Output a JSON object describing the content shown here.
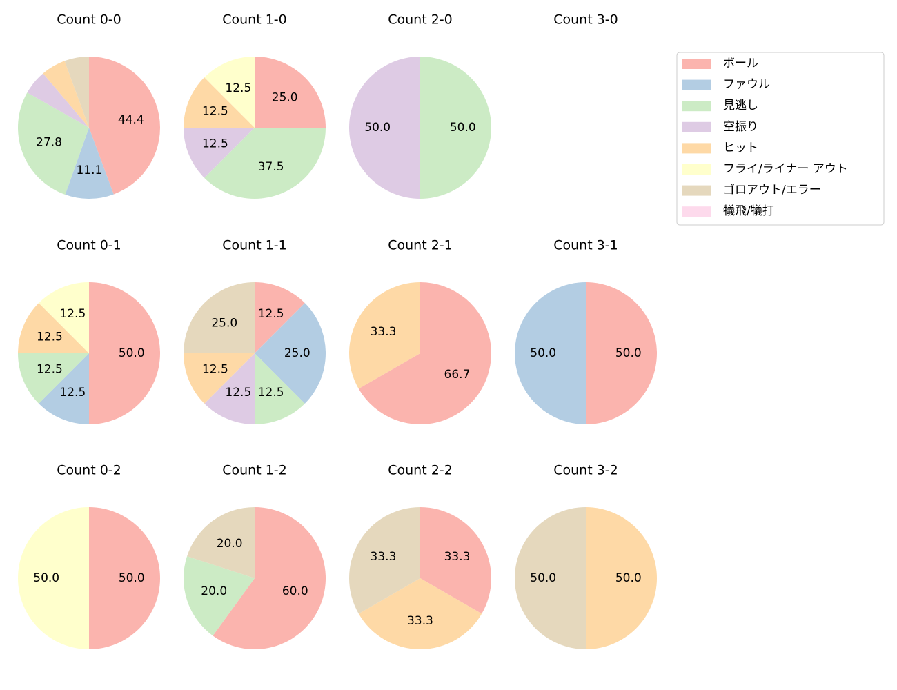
{
  "chart_data": [
    {
      "type": "pie",
      "title": "Count 0-0",
      "values": [
        44.4,
        11.1,
        27.8,
        5.6,
        5.6,
        5.6
      ],
      "value_labels": [
        "44.4",
        "11.1",
        "27.8",
        null,
        null,
        null
      ],
      "colors": [
        "#fbb4ae",
        "#b3cde3",
        "#ccebc5",
        "#decbe4",
        "#fed9a6",
        "#e5d8bd"
      ]
    },
    {
      "type": "pie",
      "title": "Count 1-0",
      "values": [
        25,
        37.5,
        12.5,
        12.5,
        12.5
      ],
      "value_labels": [
        "25.0",
        "37.5",
        "12.5",
        "12.5",
        "12.5"
      ],
      "colors": [
        "#fbb4ae",
        "#ccebc5",
        "#decbe4",
        "#fed9a6",
        "#ffffcc"
      ]
    },
    {
      "type": "pie",
      "title": "Count 2-0",
      "values": [
        50,
        50
      ],
      "value_labels": [
        "50.0",
        "50.0"
      ],
      "colors": [
        "#ccebc5",
        "#decbe4"
      ]
    },
    {
      "type": "pie",
      "title": "Count 3-0",
      "values": [],
      "value_labels": [],
      "colors": []
    },
    {
      "type": "pie",
      "title": "Count 0-1",
      "values": [
        50,
        12.5,
        12.5,
        12.5,
        12.5
      ],
      "value_labels": [
        "50.0",
        "12.5",
        "12.5",
        "12.5",
        "12.5"
      ],
      "colors": [
        "#fbb4ae",
        "#b3cde3",
        "#ccebc5",
        "#fed9a6",
        "#ffffcc"
      ]
    },
    {
      "type": "pie",
      "title": "Count 1-1",
      "values": [
        12.5,
        25,
        12.5,
        12.5,
        12.5,
        25
      ],
      "value_labels": [
        "12.5",
        "25.0",
        "12.5",
        "12.5",
        "12.5",
        "25.0"
      ],
      "colors": [
        "#fbb4ae",
        "#b3cde3",
        "#ccebc5",
        "#decbe4",
        "#fed9a6",
        "#e5d8bd"
      ]
    },
    {
      "type": "pie",
      "title": "Count 2-1",
      "values": [
        66.7,
        33.3
      ],
      "value_labels": [
        "66.7",
        "33.3"
      ],
      "colors": [
        "#fbb4ae",
        "#fed9a6"
      ]
    },
    {
      "type": "pie",
      "title": "Count 3-1",
      "values": [
        50,
        50
      ],
      "value_labels": [
        "50.0",
        "50.0"
      ],
      "colors": [
        "#fbb4ae",
        "#b3cde3"
      ]
    },
    {
      "type": "pie",
      "title": "Count 0-2",
      "values": [
        50,
        50
      ],
      "value_labels": [
        "50.0",
        "50.0"
      ],
      "colors": [
        "#fbb4ae",
        "#ffffcc"
      ]
    },
    {
      "type": "pie",
      "title": "Count 1-2",
      "values": [
        60,
        20,
        20
      ],
      "value_labels": [
        "60.0",
        "20.0",
        "20.0"
      ],
      "colors": [
        "#fbb4ae",
        "#ccebc5",
        "#e5d8bd"
      ]
    },
    {
      "type": "pie",
      "title": "Count 2-2",
      "values": [
        33.3,
        33.3,
        33.3
      ],
      "value_labels": [
        "33.3",
        "33.3",
        "33.3"
      ],
      "colors": [
        "#fbb4ae",
        "#fed9a6",
        "#e5d8bd"
      ]
    },
    {
      "type": "pie",
      "title": "Count 3-2",
      "values": [
        50,
        50
      ],
      "value_labels": [
        "50.0",
        "50.0"
      ],
      "colors": [
        "#fed9a6",
        "#e5d8bd"
      ]
    }
  ],
  "legend": {
    "labels": [
      "ボール",
      "ファウル",
      "見逃し",
      "空振り",
      "ヒット",
      "フライ/ライナー アウト",
      "ゴロアウト/エラー",
      "犠飛/犠打"
    ],
    "colors": [
      "#fbb4ae",
      "#b3cde3",
      "#ccebc5",
      "#decbe4",
      "#fed9a6",
      "#ffffcc",
      "#e5d8bd",
      "#fddaec"
    ]
  }
}
